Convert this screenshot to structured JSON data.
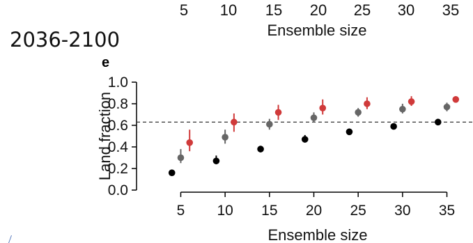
{
  "previous_panel": {
    "tick_labels": [
      "5",
      "10",
      "15",
      "20",
      "25",
      "30",
      "35"
    ],
    "xlabel": "Ensemble size"
  },
  "period_label": "2036-2100",
  "panel_letter": "e",
  "colors": {
    "black": "#000000",
    "grey": "#666666",
    "red": "#d03a3a",
    "reference_line": "#333333"
  },
  "chart_data": {
    "type": "scatter",
    "title": "",
    "xlabel": "Ensemble size",
    "ylabel": "Land fraction",
    "x": [
      5,
      10,
      15,
      20,
      25,
      30,
      35
    ],
    "xlim": [
      3,
      37
    ],
    "ylim": [
      0.0,
      1.0
    ],
    "x_ticks": [
      "5",
      "10",
      "15",
      "20",
      "25",
      "30",
      "35"
    ],
    "y_ticks": [
      "0.0",
      "0.2",
      "0.4",
      "0.6",
      "0.8",
      "1.0"
    ],
    "reference_line": {
      "y": 0.63,
      "style": "dashed"
    },
    "series": [
      {
        "color": "black",
        "offset": -1,
        "values": [
          0.16,
          0.27,
          0.38,
          0.47,
          0.54,
          0.59,
          0.63
        ],
        "err_low": [
          0.14,
          0.24,
          0.35,
          0.45,
          0.52,
          0.58,
          0.62
        ],
        "err_high": [
          0.19,
          0.32,
          0.41,
          0.51,
          0.57,
          0.61,
          0.65
        ]
      },
      {
        "color": "grey",
        "offset": 0,
        "values": [
          0.3,
          0.49,
          0.61,
          0.67,
          0.72,
          0.75,
          0.77
        ],
        "err_low": [
          0.25,
          0.43,
          0.56,
          0.63,
          0.68,
          0.71,
          0.73
        ],
        "err_high": [
          0.38,
          0.56,
          0.66,
          0.72,
          0.76,
          0.8,
          0.81
        ]
      },
      {
        "color": "red",
        "offset": 1,
        "values": [
          0.44,
          0.63,
          0.72,
          0.76,
          0.8,
          0.82,
          0.84
        ],
        "err_low": [
          0.36,
          0.54,
          0.65,
          0.7,
          0.75,
          0.78,
          0.81
        ],
        "err_high": [
          0.56,
          0.71,
          0.79,
          0.84,
          0.86,
          0.87,
          0.87
        ]
      }
    ],
    "grid": false,
    "legend": "none"
  }
}
